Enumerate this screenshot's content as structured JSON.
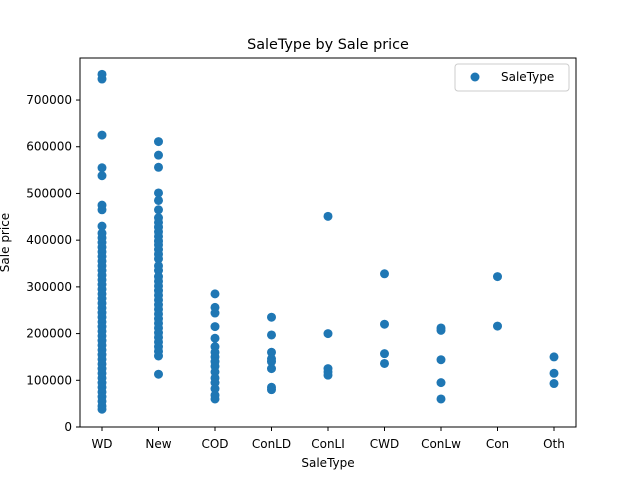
{
  "chart_data": {
    "type": "scatter",
    "title": "SaleType by Sale price",
    "xlabel": "SaleType",
    "ylabel": "Sale price",
    "ylim": [
      0,
      790000
    ],
    "yticks": [
      0,
      100000,
      200000,
      300000,
      400000,
      500000,
      600000,
      700000
    ],
    "categories": [
      "WD",
      "New",
      "COD",
      "ConLD",
      "ConLI",
      "CWD",
      "ConLw",
      "Con",
      "Oth"
    ],
    "color": "#1f77b4",
    "legend": {
      "label": "SaleType",
      "position": "top-right"
    },
    "series": [
      {
        "name": "SaleType",
        "points": [
          {
            "x": "WD",
            "y": 755000
          },
          {
            "x": "WD",
            "y": 745000
          },
          {
            "x": "WD",
            "y": 625000
          },
          {
            "x": "WD",
            "y": 555000
          },
          {
            "x": "WD",
            "y": 538000
          },
          {
            "x": "WD",
            "y": 475000
          },
          {
            "x": "WD",
            "y": 465000
          },
          {
            "x": "WD",
            "y": 430000
          },
          {
            "x": "WD",
            "y": 415000
          },
          {
            "x": "WD",
            "y": 405000
          },
          {
            "x": "WD",
            "y": 395000
          },
          {
            "x": "WD",
            "y": 385000
          },
          {
            "x": "WD",
            "y": 375000
          },
          {
            "x": "WD",
            "y": 365000
          },
          {
            "x": "WD",
            "y": 355000
          },
          {
            "x": "WD",
            "y": 345000
          },
          {
            "x": "WD",
            "y": 335000
          },
          {
            "x": "WD",
            "y": 325000
          },
          {
            "x": "WD",
            "y": 315000
          },
          {
            "x": "WD",
            "y": 305000
          },
          {
            "x": "WD",
            "y": 295000
          },
          {
            "x": "WD",
            "y": 285000
          },
          {
            "x": "WD",
            "y": 275000
          },
          {
            "x": "WD",
            "y": 265000
          },
          {
            "x": "WD",
            "y": 255000
          },
          {
            "x": "WD",
            "y": 245000
          },
          {
            "x": "WD",
            "y": 235000
          },
          {
            "x": "WD",
            "y": 225000
          },
          {
            "x": "WD",
            "y": 215000
          },
          {
            "x": "WD",
            "y": 205000
          },
          {
            "x": "WD",
            "y": 195000
          },
          {
            "x": "WD",
            "y": 185000
          },
          {
            "x": "WD",
            "y": 175000
          },
          {
            "x": "WD",
            "y": 165000
          },
          {
            "x": "WD",
            "y": 155000
          },
          {
            "x": "WD",
            "y": 145000
          },
          {
            "x": "WD",
            "y": 135000
          },
          {
            "x": "WD",
            "y": 125000
          },
          {
            "x": "WD",
            "y": 115000
          },
          {
            "x": "WD",
            "y": 105000
          },
          {
            "x": "WD",
            "y": 95000
          },
          {
            "x": "WD",
            "y": 85000
          },
          {
            "x": "WD",
            "y": 75000
          },
          {
            "x": "WD",
            "y": 65000
          },
          {
            "x": "WD",
            "y": 55000
          },
          {
            "x": "WD",
            "y": 45000
          },
          {
            "x": "WD",
            "y": 38000
          },
          {
            "x": "New",
            "y": 611000
          },
          {
            "x": "New",
            "y": 582000
          },
          {
            "x": "New",
            "y": 556000
          },
          {
            "x": "New",
            "y": 501000
          },
          {
            "x": "New",
            "y": 485000
          },
          {
            "x": "New",
            "y": 465000
          },
          {
            "x": "New",
            "y": 448000
          },
          {
            "x": "New",
            "y": 438000
          },
          {
            "x": "New",
            "y": 428000
          },
          {
            "x": "New",
            "y": 418000
          },
          {
            "x": "New",
            "y": 408000
          },
          {
            "x": "New",
            "y": 398000
          },
          {
            "x": "New",
            "y": 390000
          },
          {
            "x": "New",
            "y": 380000
          },
          {
            "x": "New",
            "y": 370000
          },
          {
            "x": "New",
            "y": 360000
          },
          {
            "x": "New",
            "y": 345000
          },
          {
            "x": "New",
            "y": 335000
          },
          {
            "x": "New",
            "y": 322000
          },
          {
            "x": "New",
            "y": 312000
          },
          {
            "x": "New",
            "y": 302000
          },
          {
            "x": "New",
            "y": 292000
          },
          {
            "x": "New",
            "y": 282000
          },
          {
            "x": "New",
            "y": 272000
          },
          {
            "x": "New",
            "y": 262000
          },
          {
            "x": "New",
            "y": 252000
          },
          {
            "x": "New",
            "y": 242000
          },
          {
            "x": "New",
            "y": 232000
          },
          {
            "x": "New",
            "y": 222000
          },
          {
            "x": "New",
            "y": 212000
          },
          {
            "x": "New",
            "y": 202000
          },
          {
            "x": "New",
            "y": 192000
          },
          {
            "x": "New",
            "y": 182000
          },
          {
            "x": "New",
            "y": 172000
          },
          {
            "x": "New",
            "y": 162000
          },
          {
            "x": "New",
            "y": 152000
          },
          {
            "x": "New",
            "y": 113000
          },
          {
            "x": "COD",
            "y": 285000
          },
          {
            "x": "COD",
            "y": 256000
          },
          {
            "x": "COD",
            "y": 244000
          },
          {
            "x": "COD",
            "y": 215000
          },
          {
            "x": "COD",
            "y": 190000
          },
          {
            "x": "COD",
            "y": 172000
          },
          {
            "x": "COD",
            "y": 160000
          },
          {
            "x": "COD",
            "y": 150000
          },
          {
            "x": "COD",
            "y": 140000
          },
          {
            "x": "COD",
            "y": 130000
          },
          {
            "x": "COD",
            "y": 118000
          },
          {
            "x": "COD",
            "y": 105000
          },
          {
            "x": "COD",
            "y": 95000
          },
          {
            "x": "COD",
            "y": 82000
          },
          {
            "x": "COD",
            "y": 68000
          },
          {
            "x": "COD",
            "y": 60000
          },
          {
            "x": "ConLD",
            "y": 235000
          },
          {
            "x": "ConLD",
            "y": 197000
          },
          {
            "x": "ConLD",
            "y": 160000
          },
          {
            "x": "ConLD",
            "y": 146000
          },
          {
            "x": "ConLD",
            "y": 140000
          },
          {
            "x": "ConLD",
            "y": 125000
          },
          {
            "x": "ConLD",
            "y": 85000
          },
          {
            "x": "ConLD",
            "y": 80000
          },
          {
            "x": "ConLI",
            "y": 451000
          },
          {
            "x": "ConLI",
            "y": 200000
          },
          {
            "x": "ConLI",
            "y": 125000
          },
          {
            "x": "ConLI",
            "y": 118000
          },
          {
            "x": "ConLI",
            "y": 111000
          },
          {
            "x": "CWD",
            "y": 328000
          },
          {
            "x": "CWD",
            "y": 220000
          },
          {
            "x": "CWD",
            "y": 157000
          },
          {
            "x": "CWD",
            "y": 136000
          },
          {
            "x": "ConLw",
            "y": 212000
          },
          {
            "x": "ConLw",
            "y": 207000
          },
          {
            "x": "ConLw",
            "y": 144000
          },
          {
            "x": "ConLw",
            "y": 95000
          },
          {
            "x": "ConLw",
            "y": 60000
          },
          {
            "x": "Con",
            "y": 322000
          },
          {
            "x": "Con",
            "y": 216000
          },
          {
            "x": "Oth",
            "y": 150000
          },
          {
            "x": "Oth",
            "y": 115000
          },
          {
            "x": "Oth",
            "y": 93000
          }
        ]
      }
    ]
  }
}
